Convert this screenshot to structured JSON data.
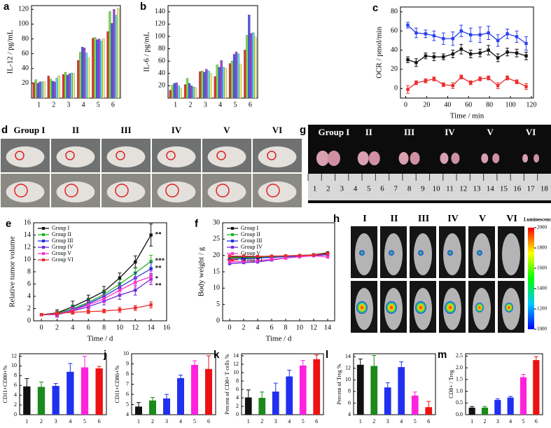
{
  "chart_data": [
    {
      "type": "bar",
      "panel_label": "a",
      "ylabel": "IL-12 / pg/mL",
      "categories": [
        "1",
        "2",
        "3",
        "4",
        "5",
        "6"
      ],
      "series": [
        {
          "color": "#e8322e",
          "values": [
            21,
            30,
            32,
            51,
            81,
            90
          ]
        },
        {
          "color": "#7be04a",
          "values": [
            25,
            26,
            35,
            62,
            82,
            117
          ]
        },
        {
          "color": "#4a5ae8",
          "values": [
            20,
            23,
            31,
            69,
            79,
            101
          ]
        },
        {
          "color": "#9a4ad8",
          "values": [
            22,
            22,
            33,
            68,
            80,
            120
          ]
        },
        {
          "color": "#5ad8e8",
          "values": [
            22,
            27,
            34,
            61,
            77,
            112
          ]
        },
        {
          "color": "#f0f07a",
          "values": [
            22,
            30,
            33,
            54,
            80,
            121
          ]
        }
      ],
      "ylim": [
        0,
        125
      ],
      "yticks": [
        20,
        40,
        60,
        80,
        100,
        120
      ]
    },
    {
      "type": "bar",
      "panel_label": "b",
      "ylabel": "IL-6 / pg/mL",
      "categories": [
        "1",
        "2",
        "3",
        "4",
        "5",
        "6"
      ],
      "series": [
        {
          "color": "#e8322e",
          "values": [
            13,
            22,
            43,
            35,
            56,
            78
          ]
        },
        {
          "color": "#7be04a",
          "values": [
            21,
            32,
            44,
            54,
            60,
            102
          ]
        },
        {
          "color": "#4a5ae8",
          "values": [
            24,
            24,
            42,
            50,
            71,
            135
          ]
        },
        {
          "color": "#9a4ad8",
          "values": [
            25,
            20,
            47,
            61,
            75,
            105
          ]
        },
        {
          "color": "#5ad8e8",
          "values": [
            20,
            18,
            44,
            50,
            72,
            106
          ]
        },
        {
          "color": "#f0f07a",
          "values": [
            16,
            17,
            40,
            48,
            55,
            99
          ]
        }
      ],
      "ylim": [
        0,
        150
      ],
      "yticks": [
        20,
        40,
        60,
        80,
        100,
        120,
        140
      ]
    },
    {
      "type": "line",
      "panel_label": "c",
      "xlabel": "Time / min",
      "ylabel": "OCR / pmol/min",
      "x": [
        2,
        10,
        19,
        27,
        36,
        45,
        53,
        62,
        71,
        79,
        88,
        97,
        106,
        115
      ],
      "series": [
        {
          "color": "#2a3ef0",
          "values": [
            66,
            58,
            57,
            55,
            52,
            52,
            60,
            56,
            56,
            58,
            50,
            57,
            54,
            47
          ],
          "errors": [
            3,
            5,
            4,
            5,
            6,
            7,
            6,
            7,
            8,
            7,
            6,
            5,
            6,
            7
          ]
        },
        {
          "color": "#111111",
          "values": [
            30,
            27,
            34,
            33,
            33,
            36,
            41,
            36,
            37,
            40,
            32,
            38,
            37,
            34
          ],
          "errors": [
            3,
            4,
            3,
            4,
            3,
            4,
            5,
            4,
            4,
            5,
            4,
            4,
            4,
            4
          ]
        },
        {
          "color": "#ee2a2a",
          "values": [
            -1,
            6,
            8,
            10,
            4,
            3,
            12,
            6,
            10,
            11,
            3,
            11,
            7,
            2
          ],
          "errors": [
            4,
            2,
            2,
            2,
            2,
            3,
            2,
            2,
            2,
            2,
            3,
            2,
            2,
            3
          ]
        }
      ],
      "xlim": [
        -5,
        122
      ],
      "xticks": [
        0,
        20,
        40,
        60,
        80,
        100,
        120
      ],
      "ylim": [
        -10,
        85
      ],
      "yticks": [
        0,
        20,
        40,
        60,
        80
      ]
    },
    {
      "type": "image",
      "panel_label": "d",
      "labels": [
        "Group I",
        "II",
        "III",
        "IV",
        "V",
        "VI"
      ]
    },
    {
      "type": "line",
      "panel_label": "e",
      "xlabel": "Time / d",
      "ylabel": "Relative tumor volume",
      "legend": "upper left",
      "x": [
        0,
        2,
        4,
        6,
        8,
        10,
        12,
        14
      ],
      "series": [
        {
          "name": "Group I",
          "color": "#111111",
          "values": [
            1,
            1.3,
            2.3,
            3.5,
            4.8,
            7,
            9.6,
            14
          ],
          "errors": [
            0.2,
            0.5,
            0.9,
            0.7,
            0.8,
            0.8,
            1.0,
            1.8
          ]
        },
        {
          "name": "Group II",
          "color": "#1db31d",
          "values": [
            1,
            1.2,
            2,
            3,
            4.3,
            6,
            7.8,
            9.7
          ],
          "errors": [
            0.2,
            0.4,
            0.6,
            0.6,
            0.6,
            0.7,
            0.9,
            1.0
          ]
        },
        {
          "name": "Group III",
          "color": "#2030e0",
          "values": [
            1,
            1.1,
            1.8,
            2.8,
            4,
            5.5,
            7,
            8.5
          ],
          "errors": [
            0.2,
            0.4,
            0.6,
            0.6,
            0.6,
            0.7,
            0.9,
            1.0
          ]
        },
        {
          "name": "Group IV",
          "color": "#6a2ad8",
          "values": [
            1,
            1,
            1.6,
            2.3,
            3.2,
            4.2,
            5,
            6.8
          ],
          "errors": [
            0.2,
            0.4,
            0.5,
            0.5,
            0.6,
            0.7,
            0.8,
            0.9
          ]
        },
        {
          "name": "Group V",
          "color": "#ff33cc",
          "values": [
            1,
            1.1,
            1.7,
            2.6,
            3.6,
            5,
            6.3,
            7.2
          ],
          "errors": [
            0.2,
            0.4,
            0.5,
            0.6,
            0.6,
            0.7,
            0.8,
            0.9
          ]
        },
        {
          "name": "Group VI",
          "color": "#ee2a2a",
          "values": [
            1,
            1.2,
            1.4,
            1.5,
            1.6,
            1.8,
            2.1,
            2.6
          ],
          "errors": [
            0.2,
            0.3,
            0.3,
            0.3,
            0.3,
            0.4,
            0.4,
            0.5
          ]
        }
      ],
      "annotations": [
        "**",
        "***",
        "**",
        "*",
        "**"
      ],
      "xlim": [
        -1,
        16
      ],
      "xticks": [
        0,
        2,
        4,
        6,
        8,
        10,
        12,
        14,
        16
      ],
      "ylim": [
        0,
        16
      ],
      "yticks": [
        0,
        2,
        4,
        6,
        8,
        10,
        12,
        14,
        16
      ]
    },
    {
      "type": "line",
      "panel_label": "f",
      "xlabel": "Time / d",
      "ylabel": "Body weight / g",
      "legend": "upper left",
      "x": [
        0,
        2,
        4,
        6,
        8,
        10,
        12,
        14
      ],
      "series": [
        {
          "name": "Group I",
          "color": "#111111",
          "values": [
            19.5,
            19.5,
            19.6,
            19.7,
            19.8,
            20,
            20.2,
            20.8
          ]
        },
        {
          "name": "Group II",
          "color": "#1db31d",
          "values": [
            19.2,
            19.3,
            19.4,
            19.5,
            19.7,
            19.9,
            20.1,
            20.5
          ]
        },
        {
          "name": "Group III",
          "color": "#2030e0",
          "values": [
            18.8,
            19,
            19.2,
            19.4,
            19.6,
            19.8,
            20,
            20.4
          ]
        },
        {
          "name": "Group IV",
          "color": "#6a2ad8",
          "values": [
            17.5,
            17.8,
            18,
            18.6,
            19.2,
            19.6,
            19.9,
            20.2
          ]
        },
        {
          "name": "Group V",
          "color": "#ff33cc",
          "values": [
            18,
            18.2,
            18.4,
            18.8,
            19.2,
            19.6,
            19.9,
            19.5
          ]
        },
        {
          "name": "Group VI",
          "color": "#ee2a2a",
          "values": [
            19.8,
            19.8,
            19.7,
            19.8,
            19.9,
            20,
            20.1,
            20.6
          ]
        }
      ],
      "xlim": [
        -1,
        15
      ],
      "xticks": [
        0,
        2,
        4,
        6,
        8,
        10,
        12,
        14
      ],
      "ylim": [
        0,
        30
      ],
      "yticks": [
        0,
        5,
        10,
        15,
        20,
        25,
        30
      ]
    },
    {
      "type": "image",
      "panel_label": "g",
      "labels": [
        "Group I",
        "II",
        "III",
        "IV",
        "V",
        "VI"
      ],
      "ruler_labels": [
        1,
        2,
        3,
        4,
        5,
        6,
        7,
        8,
        9,
        10,
        11,
        12,
        13,
        14,
        15,
        16,
        17,
        18
      ]
    },
    {
      "type": "image",
      "panel_label": "h",
      "labels": [
        "I",
        "II",
        "III",
        "IV",
        "V",
        "VI"
      ],
      "colorbar": {
        "label": "Luminescence",
        "lim": [
          1000,
          2000
        ],
        "ticks": [
          1000,
          1200,
          1400,
          1600,
          1800,
          2000
        ]
      }
    },
    {
      "type": "bar",
      "panel_label": "i",
      "ylabel": "CD11+CD80+%",
      "categories": [
        "1",
        "2",
        "3",
        "4",
        "5",
        "6"
      ],
      "values": [
        5.8,
        5.7,
        5.9,
        8.8,
        9.7,
        9.5
      ],
      "errors": [
        1.6,
        1,
        0.5,
        1.7,
        2.3,
        0.4
      ],
      "colors": [
        "#111111",
        "#1a8a1a",
        "#2030f0",
        "#2030f0",
        "#ff22dd",
        "#ee1111"
      ],
      "ylim": [
        0,
        12.5
      ],
      "yticks": [
        0,
        2,
        4,
        6,
        8,
        10,
        12
      ]
    },
    {
      "type": "bar",
      "panel_label": "j",
      "ylabel": "CD11+CD86+%",
      "categories": [
        "1",
        "2",
        "3",
        "4",
        "5",
        "6"
      ],
      "values": [
        4.8,
        5.4,
        5.6,
        7.6,
        8.9,
        8.5
      ],
      "errors": [
        0.4,
        0.3,
        0.4,
        0.3,
        0.4,
        1.3
      ],
      "colors": [
        "#111111",
        "#1a8a1a",
        "#2030f0",
        "#2030f0",
        "#ff22dd",
        "#ee1111"
      ],
      "ylim": [
        4,
        10
      ],
      "yticks": [
        4,
        5,
        6,
        7,
        8,
        9,
        10
      ]
    },
    {
      "type": "bar",
      "panel_label": "k",
      "ylabel": "Percent of CD8+ T cells %",
      "categories": [
        "1",
        "2",
        "3",
        "4",
        "5",
        "6"
      ],
      "values": [
        4.1,
        4.0,
        5.5,
        9.1,
        11.7,
        13.2
      ],
      "errors": [
        1.8,
        1.4,
        2,
        1.5,
        1.2,
        1
      ],
      "colors": [
        "#111111",
        "#1a8a1a",
        "#2030f0",
        "#2030f0",
        "#ff22dd",
        "#ee1111"
      ],
      "ylim": [
        0,
        14.5
      ],
      "yticks": [
        0,
        2,
        4,
        6,
        8,
        10,
        12,
        14
      ]
    },
    {
      "type": "bar",
      "panel_label": "l",
      "ylabel": "Percent of Treg %",
      "categories": [
        "1",
        "2",
        "3",
        "4",
        "5",
        "6"
      ],
      "values": [
        12.6,
        12.4,
        8.7,
        12.2,
        7.3,
        5.3
      ],
      "errors": [
        1,
        1.8,
        0.8,
        0.9,
        0.6,
        1
      ],
      "colors": [
        "#111111",
        "#1a8a1a",
        "#2030f0",
        "#2030f0",
        "#ff22dd",
        "#ee1111"
      ],
      "ylim": [
        4,
        14.5
      ],
      "yticks": [
        4,
        6,
        8,
        10,
        12,
        14
      ]
    },
    {
      "type": "bar",
      "panel_label": "m",
      "ylabel": "CD8+ / Treg",
      "categories": [
        "1",
        "2",
        "3",
        "4",
        "5",
        "6"
      ],
      "values": [
        0.3,
        0.3,
        0.63,
        0.73,
        1.6,
        2.33
      ],
      "errors": [
        0.05,
        0.05,
        0.05,
        0.05,
        0.12,
        0.15
      ],
      "colors": [
        "#111111",
        "#1a8a1a",
        "#2030f0",
        "#2030f0",
        "#ff22dd",
        "#ee1111"
      ],
      "ylim": [
        0,
        2.6
      ],
      "yticks": [
        {
          "value": 0,
          "label": "0.0"
        },
        0.5,
        {
          "value": 1,
          "label": "1.0"
        },
        1.5,
        {
          "value": 2,
          "label": "2.0"
        },
        2.5
      ]
    }
  ]
}
